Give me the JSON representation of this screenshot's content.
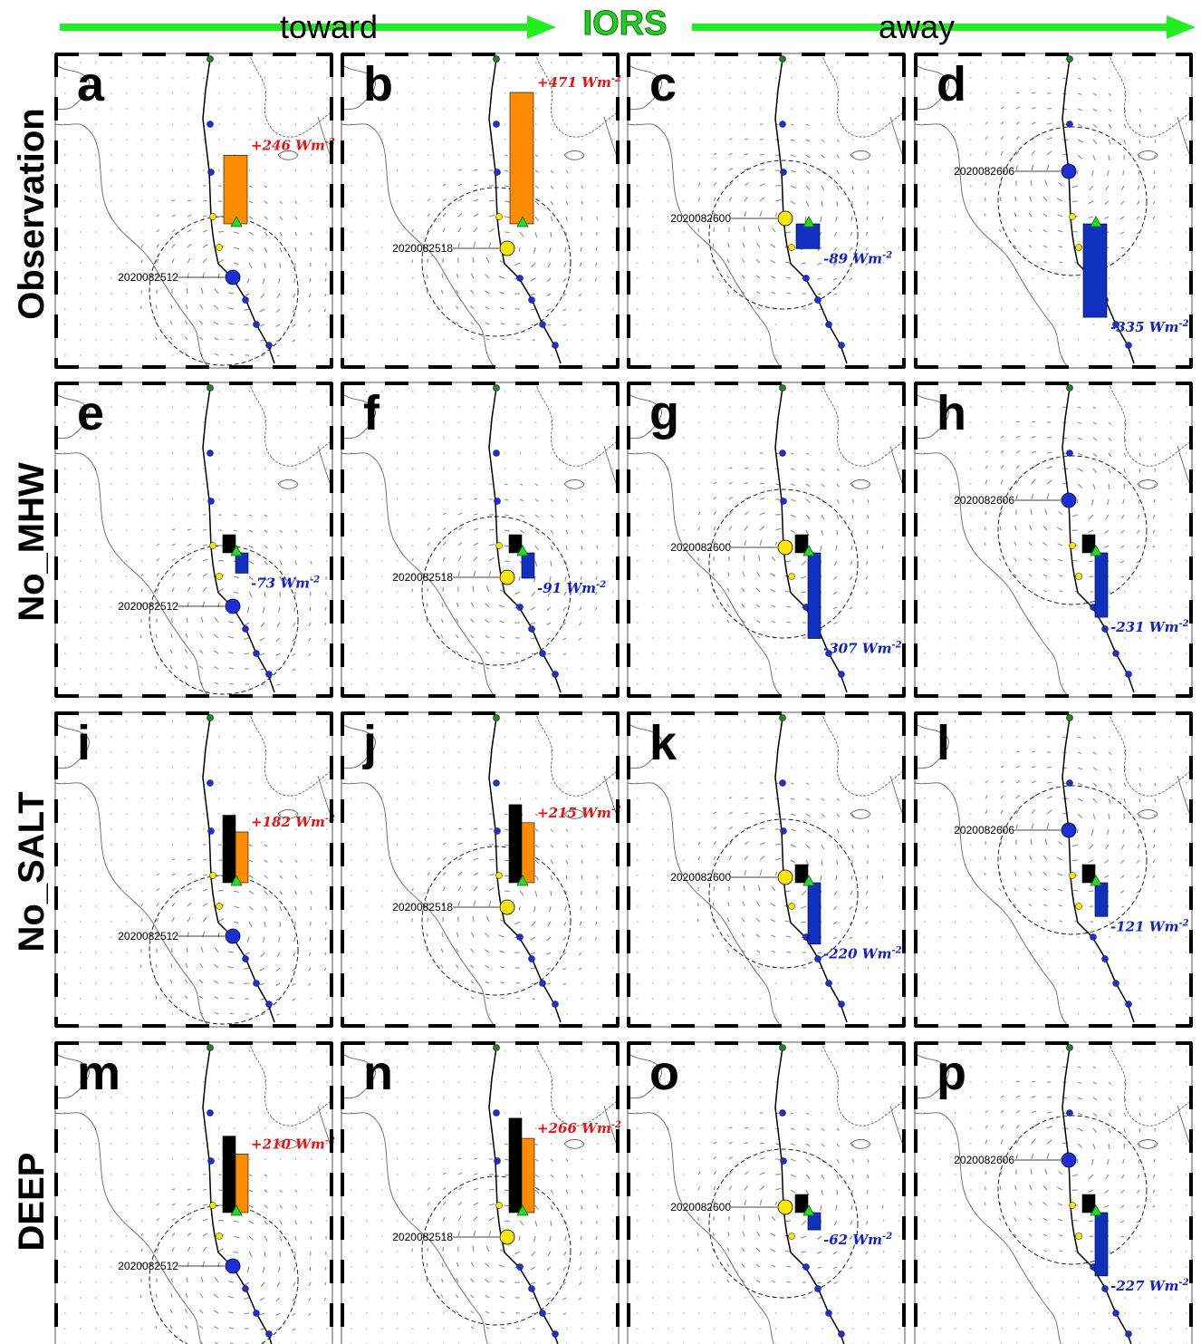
{
  "header": {
    "left_text": "toward",
    "center_text": "IORS",
    "right_text": "away",
    "arrow_color": "#22ee22"
  },
  "rows": [
    {
      "label": "Observation"
    },
    {
      "label": "No_MHW"
    },
    {
      "label": "No_SALT"
    },
    {
      "label": "DEEP"
    }
  ],
  "columns": [
    {
      "time": "2020082512"
    },
    {
      "time": "2020082518"
    },
    {
      "time": "2020082600"
    },
    {
      "time": "2020082606"
    }
  ],
  "panels": [
    {
      "letter": "a",
      "flux_label": "+246 Wm",
      "exp": "-2",
      "flux": 246,
      "has_black": false
    },
    {
      "letter": "b",
      "flux_label": "+471 Wm",
      "exp": "-2",
      "flux": 471,
      "has_black": false
    },
    {
      "letter": "c",
      "flux_label": "-89 Wm",
      "exp": "-2",
      "flux": -89,
      "has_black": false
    },
    {
      "letter": "d",
      "flux_label": "-335 Wm",
      "exp": "-2",
      "flux": -335,
      "has_black": false
    },
    {
      "letter": "e",
      "flux_label": "-73 Wm",
      "exp": "-2",
      "flux": -73,
      "has_black": true
    },
    {
      "letter": "f",
      "flux_label": "-91 Wm",
      "exp": "-2",
      "flux": -91,
      "has_black": true
    },
    {
      "letter": "g",
      "flux_label": "-307 Wm",
      "exp": "-2",
      "flux": -307,
      "has_black": true
    },
    {
      "letter": "h",
      "flux_label": "-231 Wm",
      "exp": "-2",
      "flux": -231,
      "has_black": true
    },
    {
      "letter": "i",
      "flux_label": "+182 Wm",
      "exp": "-2",
      "flux": 182,
      "has_black": true
    },
    {
      "letter": "j",
      "flux_label": "+215 Wm",
      "exp": "-2",
      "flux": 215,
      "has_black": true
    },
    {
      "letter": "k",
      "flux_label": "-220 Wm",
      "exp": "-2",
      "flux": -220,
      "has_black": true
    },
    {
      "letter": "l",
      "flux_label": "-121 Wm",
      "exp": "-2",
      "flux": -121,
      "has_black": true
    },
    {
      "letter": "m",
      "flux_label": "+210 Wm",
      "exp": "-2",
      "flux": 210,
      "has_black": true
    },
    {
      "letter": "n",
      "flux_label": "+266 Wm",
      "exp": "-2",
      "flux": 266,
      "has_black": true
    },
    {
      "letter": "o",
      "flux_label": "-62 Wm",
      "exp": "-2",
      "flux": -62,
      "has_black": true
    },
    {
      "letter": "p",
      "flux_label": "-227 Wm",
      "exp": "-2",
      "flux": -227,
      "has_black": true
    }
  ],
  "colors": {
    "positive_flux": "#ff8c00",
    "negative_flux": "#1030c0",
    "control_bar": "#000000",
    "positive_text": "#ee1111",
    "negative_text": "#1020cc",
    "storm_dot": "#1a2fd6",
    "current_dot": "#ffe600",
    "start_dot": "#1a8a1a",
    "buoy_marker": "#22dd22"
  }
}
